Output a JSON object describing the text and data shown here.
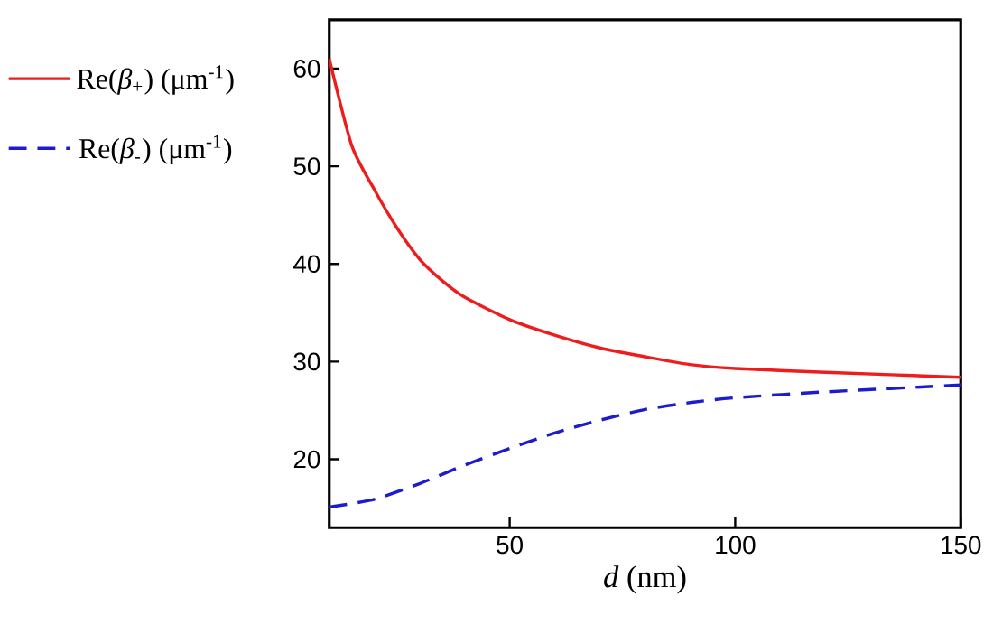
{
  "chart_data": {
    "type": "line",
    "xlabel": "*d* (nm)",
    "legend": "left",
    "grid": false,
    "xlim": [
      10,
      150
    ],
    "xticks": [
      50,
      100,
      150
    ],
    "ylim": [
      13,
      65
    ],
    "yticks": [
      20,
      30,
      40,
      50,
      60
    ],
    "series": [
      {
        "name": "Re(*β*$_{+}$) (μm$^{-1}$)",
        "color": "#ee1c1c",
        "line_style": "solid",
        "x": [
          10,
          15,
          20,
          25,
          30,
          35,
          40,
          50,
          60,
          70,
          80,
          90,
          100,
          120,
          150
        ],
        "values": [
          61,
          52.1,
          47.6,
          43.7,
          40.5,
          38.3,
          36.6,
          34.3,
          32.7,
          31.4,
          30.5,
          29.7,
          29.3,
          28.9,
          28.4
        ]
      },
      {
        "name": "Re(*β*$_{-}$) (μm$^{-1}$)",
        "color": "#1c1ccc",
        "line_style": "dashed",
        "x": [
          10,
          20,
          30,
          40,
          50,
          60,
          70,
          80,
          90,
          100,
          120,
          150
        ],
        "values": [
          15.1,
          15.9,
          17.5,
          19.4,
          21.1,
          22.7,
          24.0,
          25.1,
          25.8,
          26.3,
          26.9,
          27.6
        ]
      }
    ]
  }
}
